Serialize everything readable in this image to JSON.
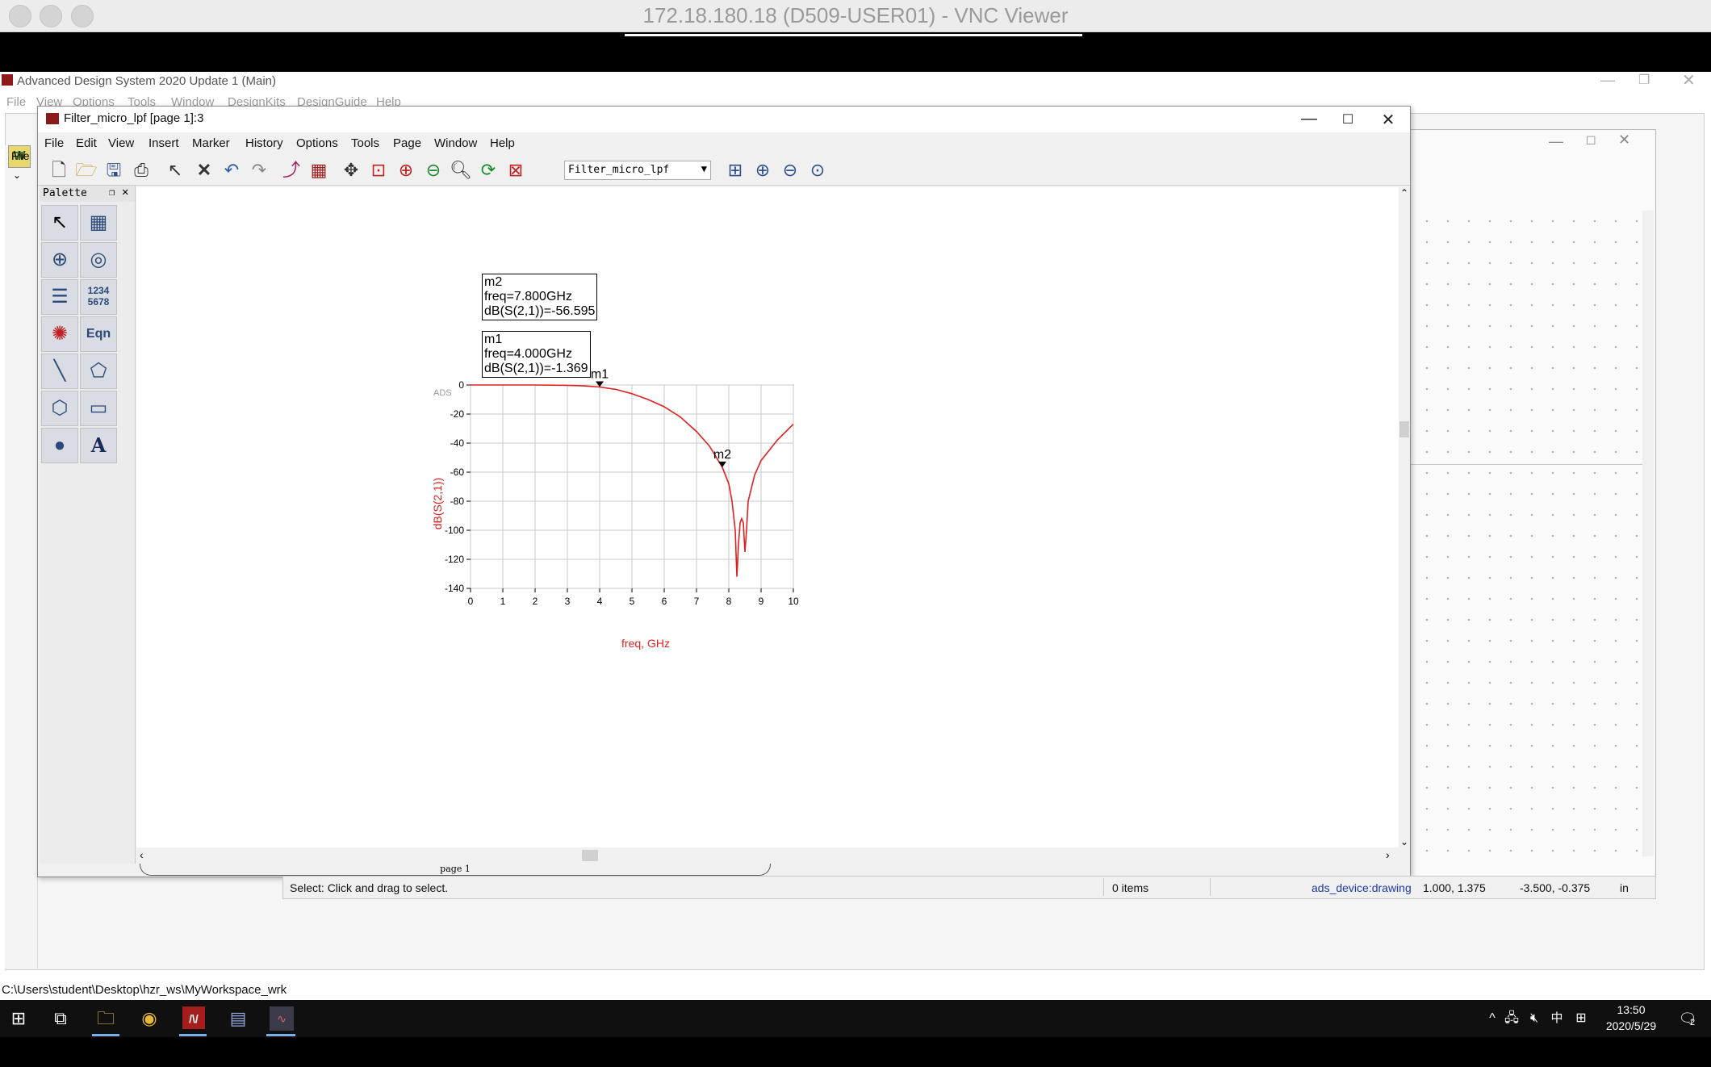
{
  "mac": {
    "title": "172.18.180.18 (D509-USER01) - VNC Viewer"
  },
  "ads_main": {
    "title": "Advanced Design System 2020 Update 1 (Main)",
    "menu": [
      "File",
      "View",
      "Options",
      "Tools",
      "Window",
      "DesignKits",
      "DesignGuide",
      "Help"
    ],
    "file_label": "File"
  },
  "dds": {
    "title": "Filter_micro_lpf [page 1]:3",
    "menu": [
      "File",
      "Edit",
      "View",
      "Insert",
      "Marker",
      "History",
      "Options",
      "Tools",
      "Page",
      "Window",
      "Help"
    ],
    "dataset": "Filter_micro_lpf",
    "palette_title": "Palette",
    "palette_numbers": "1234\n5678",
    "palette_eqn": "Eqn",
    "page_tab": "page 1"
  },
  "markers": {
    "m2": {
      "name": "m2",
      "freq": "freq=7.800GHz",
      "value": "dB(S(2,1))=-56.595"
    },
    "m1": {
      "name": "m1",
      "freq": "freq=4.000GHz",
      "value": "dB(S(2,1))=-1.369"
    }
  },
  "chart_data": {
    "type": "line",
    "watermark": "ADS",
    "xlabel": "freq, GHz",
    "ylabel": "dB(S(2,1))",
    "xlim": [
      0,
      10
    ],
    "ylim": [
      -140,
      0
    ],
    "xticks": [
      0,
      1,
      2,
      3,
      4,
      5,
      6,
      7,
      8,
      9,
      10
    ],
    "yticks": [
      0,
      -20,
      -40,
      -60,
      -80,
      -100,
      -120,
      -140
    ],
    "grid": true,
    "line_color": "#e02020",
    "series": [
      {
        "x": [
          0,
          1,
          2,
          3,
          3.5,
          4.0,
          4.5,
          5.0,
          5.5,
          6.0,
          6.5,
          7.0,
          7.4,
          7.8,
          8.0,
          8.1,
          8.2,
          8.25,
          8.3,
          8.35,
          8.4,
          8.45,
          8.5,
          8.55,
          8.6,
          8.8,
          9.0,
          9.5,
          10.0
        ],
        "y": [
          0,
          0,
          0,
          -0.2,
          -0.6,
          -1.369,
          -3,
          -6,
          -10,
          -15,
          -22,
          -32,
          -42,
          -56.595,
          -68,
          -80,
          -100,
          -132,
          -110,
          -95,
          -92,
          -95,
          -115,
          -100,
          -80,
          -62,
          -52,
          -38,
          -27
        ]
      }
    ],
    "markers": [
      {
        "name": "m1",
        "x": 4.0,
        "y": -1.369
      },
      {
        "name": "m2",
        "x": 7.8,
        "y": -56.595
      }
    ]
  },
  "status": {
    "message": "Select: Click and drag to select.",
    "items": "0 items",
    "layer": "ads_device:drawing",
    "coord1": "1.000, 1.375",
    "coord2": "-3.500, -0.375",
    "unit": "in"
  },
  "path_bar": "C:\\Users\\student\\Desktop\\hzr_ws\\MyWorkspace_wrk",
  "taskbar": {
    "time": "13:50",
    "date": "2020/5/29",
    "ime": "中",
    "notif_count": "2"
  }
}
